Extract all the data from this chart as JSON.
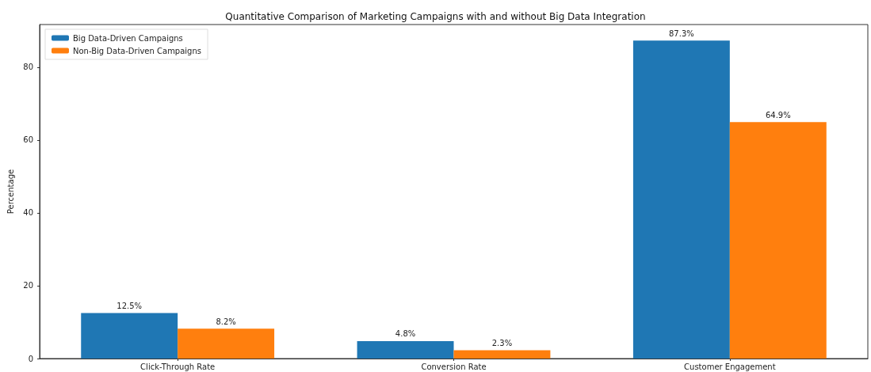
{
  "chart_data": {
    "type": "bar",
    "title": "Quantitative Comparison of Marketing Campaigns with and without Big Data Integration",
    "ylabel": "Percentage",
    "categories": [
      "Click-Through Rate",
      "Conversion Rate",
      "Customer Engagement"
    ],
    "series": [
      {
        "name": "Big Data-Driven Campaigns",
        "color": "#1f77b4",
        "values": [
          12.5,
          4.8,
          87.3
        ],
        "value_labels": [
          "12.5%",
          "4.8%",
          "87.3%"
        ]
      },
      {
        "name": "Non-Big Data-Driven Campaigns",
        "color": "#ff7f0e",
        "values": [
          8.2,
          2.3,
          64.9
        ],
        "value_labels": [
          "8.2%",
          "2.3%",
          "64.9%"
        ]
      }
    ],
    "ylim": [
      0,
      91.7
    ],
    "yticks": [
      0,
      20,
      40,
      60,
      80
    ],
    "grid": false,
    "legend": "top left"
  }
}
